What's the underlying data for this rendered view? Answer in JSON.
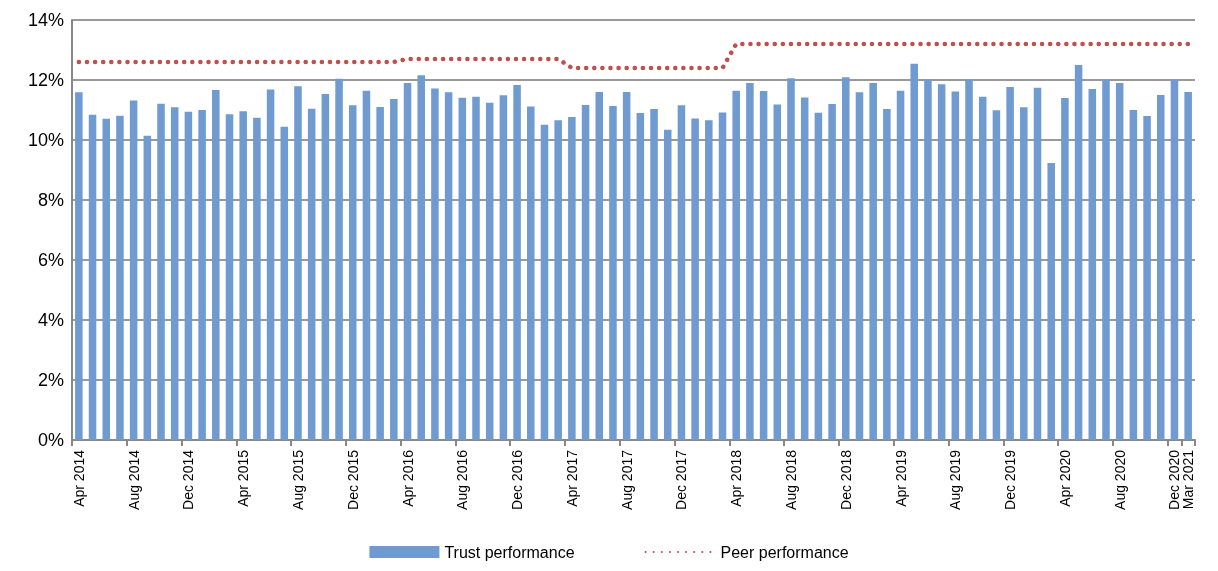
{
  "chart_data": {
    "type": "bar",
    "categories": [
      "Apr 2014",
      null,
      null,
      null,
      "Aug 2014",
      null,
      null,
      null,
      "Dec 2014",
      null,
      null,
      null,
      "Apr 2015",
      null,
      null,
      null,
      "Aug 2015",
      null,
      null,
      null,
      "Dec 2015",
      null,
      null,
      null,
      "Apr 2016",
      null,
      null,
      null,
      "Aug 2016",
      null,
      null,
      null,
      "Dec 2016",
      null,
      null,
      null,
      "Apr 2017",
      null,
      null,
      null,
      "Aug 2017",
      null,
      null,
      null,
      "Dec 2017",
      null,
      null,
      null,
      "Apr 2018",
      null,
      null,
      null,
      "Aug 2018",
      null,
      null,
      null,
      "Dec 2018",
      null,
      null,
      null,
      "Apr 2019",
      null,
      null,
      null,
      "Aug 2019",
      null,
      null,
      null,
      "Dec 2019",
      null,
      null,
      null,
      "Apr 2020",
      null,
      null,
      null,
      "Aug 2020",
      null,
      null,
      null,
      "Dec 2020",
      "Mar 2021"
    ],
    "series": [
      {
        "name": "Trust performance",
        "type": "bar",
        "color": "#6f9bd1",
        "values": [
          11.59,
          10.84,
          10.71,
          10.81,
          11.32,
          10.14,
          11.21,
          11.09,
          10.94,
          11.0,
          11.67,
          10.86,
          10.96,
          10.74,
          11.68,
          10.44,
          11.79,
          11.04,
          11.53,
          12.04,
          11.16,
          11.64,
          11.1,
          11.37,
          11.9,
          12.16,
          11.72,
          11.59,
          11.41,
          11.44,
          11.24,
          11.49,
          11.83,
          11.12,
          10.51,
          10.66,
          10.77,
          11.17,
          11.6,
          11.13,
          11.6,
          10.9,
          11.03,
          10.34,
          11.16,
          10.72,
          10.66,
          10.92,
          11.64,
          11.9,
          11.63,
          11.18,
          12.06,
          11.42,
          10.91,
          11.2,
          12.09,
          11.59,
          11.9,
          11.03,
          11.64,
          12.54,
          12.02,
          11.86,
          11.62,
          12.01,
          11.44,
          10.99,
          11.77,
          11.09,
          11.74,
          9.23,
          11.4,
          12.5,
          11.7,
          12.0,
          11.9,
          11.0,
          10.8,
          11.5,
          12.0,
          11.6
        ]
      },
      {
        "name": "Peer performance",
        "type": "line",
        "color": "#c0504d",
        "line_style": "dotted",
        "marker": "none",
        "values": [
          12.6,
          12.6,
          12.6,
          12.6,
          12.6,
          12.6,
          12.6,
          12.6,
          12.6,
          12.6,
          12.6,
          12.6,
          12.6,
          12.6,
          12.6,
          12.6,
          12.6,
          12.6,
          12.6,
          12.6,
          12.6,
          12.6,
          12.6,
          12.6,
          12.7,
          12.7,
          12.7,
          12.7,
          12.7,
          12.7,
          12.7,
          12.7,
          12.7,
          12.7,
          12.7,
          12.7,
          12.4,
          12.4,
          12.4,
          12.4,
          12.4,
          12.4,
          12.4,
          12.4,
          12.4,
          12.4,
          12.4,
          12.4,
          13.2,
          13.2,
          13.2,
          13.2,
          13.2,
          13.2,
          13.2,
          13.2,
          13.2,
          13.2,
          13.2,
          13.2,
          13.2,
          13.2,
          13.2,
          13.2,
          13.2,
          13.2,
          13.2,
          13.2,
          13.2,
          13.2,
          13.2,
          13.2,
          13.2,
          13.2,
          13.2,
          13.2,
          13.2,
          13.2,
          13.2,
          13.2,
          13.2,
          13.2
        ]
      }
    ],
    "ylim": [
      0,
      14
    ],
    "yticks": [
      {
        "value": 0,
        "label": "0%"
      },
      {
        "value": 2,
        "label": "2%"
      },
      {
        "value": 4,
        "label": "4%"
      },
      {
        "value": 6,
        "label": "6%"
      },
      {
        "value": 8,
        "label": "8%"
      },
      {
        "value": 10,
        "label": "10%"
      },
      {
        "value": 12,
        "label": "12%"
      },
      {
        "value": 14,
        "label": "14%"
      }
    ],
    "grid": "y",
    "legend": "bottom"
  }
}
